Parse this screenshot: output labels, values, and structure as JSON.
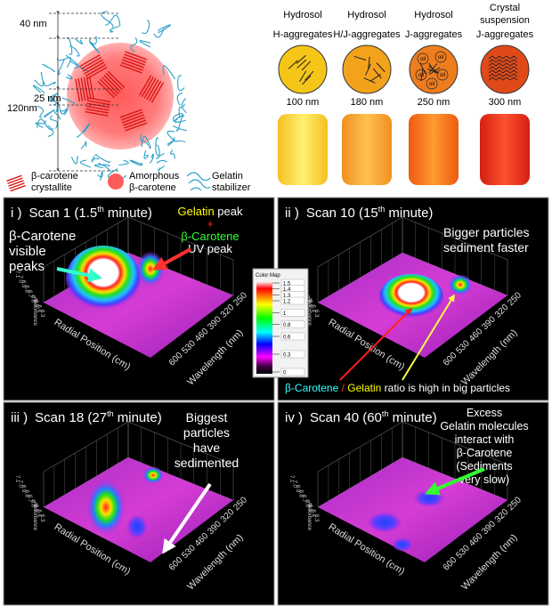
{
  "figure": {
    "diagram": {
      "dimensions": [
        "40 nm",
        "120nm",
        "25 nm"
      ],
      "legend": [
        [
          "β-carotene",
          "crystallite"
        ],
        [
          "Amorphous",
          "β-carotene"
        ],
        [
          "Gelatin",
          "stabilizer"
        ]
      ]
    },
    "samples": [
      {
        "type": [
          "Hydrosol"
        ],
        "aggregate": "H-aggregates",
        "size": "100 nm"
      },
      {
        "type": [
          "Hydrosol"
        ],
        "aggregate": "H/J-aggregates",
        "size": "180 nm"
      },
      {
        "type": [
          "Hydrosol"
        ],
        "aggregate": "J-aggregates",
        "size": "250 nm",
        "inclusion": "oil"
      },
      {
        "type": [
          "Crystal",
          "suspension"
        ],
        "aggregate": "J-aggregates",
        "size": "300 nm"
      }
    ],
    "color_map": {
      "title": "Color Map",
      "levels": [
        1.5,
        1.4,
        1.3,
        1.2,
        1,
        0.8,
        0.6,
        0.3,
        0
      ]
    },
    "axes": {
      "radial_label": "Radial Position (cm)",
      "wavelength_label": "Wavelength (nm)",
      "z_label": "Absorbance",
      "wavelength_ticks": [
        250,
        320,
        390,
        460,
        530,
        600
      ],
      "radial_ticks": [
        "7.1",
        "7.0",
        "6.9",
        "6.8",
        "6.7",
        "6.6",
        "6.5",
        "6.4",
        "6.3"
      ]
    },
    "panels": [
      {
        "number": "i )",
        "title": [
          "Scan 1 (1.5",
          "th",
          " minute)"
        ],
        "notes": [
          {
            "lines": [
              [
                {
                  "text": "β-Carotene",
                  "color": "#ffffff"
                }
              ],
              [
                {
                  "text": "visible",
                  "color": "#ffffff"
                }
              ],
              [
                {
                  "text": "peaks",
                  "color": "#ffffff"
                }
              ]
            ]
          },
          {
            "lines": [
              [
                {
                  "text": "Gelatin",
                  "color": "#ffff00"
                },
                {
                  "text": " peak",
                  "color": "#ffffff"
                }
              ],
              [
                {
                  "text": "+",
                  "color": "#ff2020"
                }
              ],
              [
                {
                  "text": "β-Carotene",
                  "color": "#33ff33"
                }
              ],
              [
                {
                  "text": "UV peak",
                  "color": "#ffffff"
                }
              ]
            ]
          }
        ]
      },
      {
        "number": "ii )",
        "title": [
          "Scan 10 (15",
          "th",
          " minute)"
        ],
        "notes": [
          {
            "lines": [
              [
                {
                  "text": "Bigger particles",
                  "color": "#ffffff"
                }
              ],
              [
                {
                  "text": "sediment faster",
                  "color": "#ffffff"
                }
              ]
            ]
          },
          {
            "lines": [
              [
                {
                  "text": "β-Carotene",
                  "color": "#33ffff"
                },
                {
                  "text": " / ",
                  "color": "#ff3030"
                },
                {
                  "text": "Gelatin",
                  "color": "#ffff00"
                },
                {
                  "text": " ratio is high in big particles",
                  "color": "#ffffff"
                }
              ]
            ]
          }
        ]
      },
      {
        "number": "iii )",
        "title": [
          "Scan 18 (27",
          "th",
          " minute)"
        ],
        "notes": [
          {
            "lines": [
              [
                {
                  "text": "Biggest",
                  "color": "#ffffff"
                }
              ],
              [
                {
                  "text": "particles",
                  "color": "#ffffff"
                }
              ],
              [
                {
                  "text": "have",
                  "color": "#ffffff"
                }
              ],
              [
                {
                  "text": "sedimented",
                  "color": "#ffffff"
                }
              ]
            ]
          }
        ]
      },
      {
        "number": "iv )",
        "title": [
          "Scan 40 (60",
          "th",
          " minute)"
        ],
        "notes": [
          {
            "lines": [
              [
                {
                  "text": "Excess",
                  "color": "#ffffff"
                }
              ],
              [
                {
                  "text": "Gelatin molecules",
                  "color": "#ffffff"
                }
              ],
              [
                {
                  "text": "interact with",
                  "color": "#ffffff"
                }
              ],
              [
                {
                  "text": "β-Carotene",
                  "color": "#ffffff"
                }
              ],
              [
                {
                  "text": "(Sediments",
                  "color": "#ffffff"
                }
              ],
              [
                {
                  "text": "very slow)",
                  "color": "#ffffff"
                }
              ]
            ]
          }
        ]
      }
    ]
  }
}
